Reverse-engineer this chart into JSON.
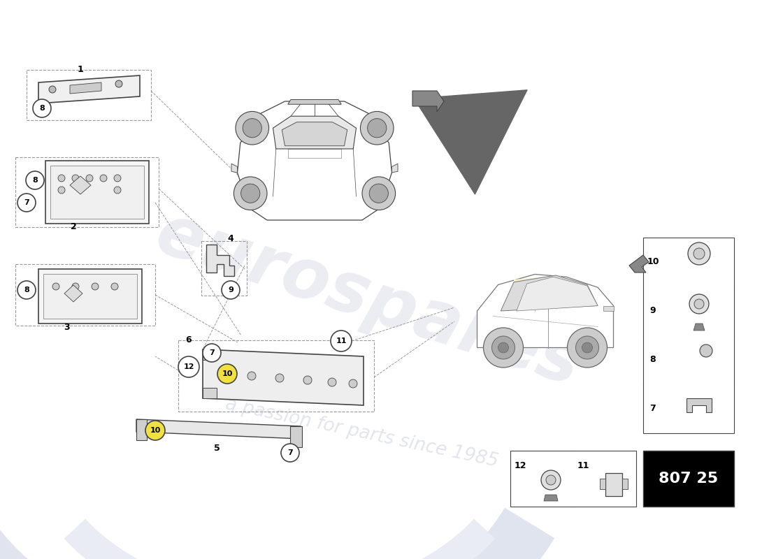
{
  "page_code": "807 25",
  "background_color": "#ffffff",
  "watermark_text1": "eurospares",
  "watermark_text2": "a passion for parts since 1985",
  "arc_color": "#e8eaf0",
  "line_color": "#444444",
  "dashed_color": "#999999",
  "circle_fill": "#ffffff",
  "highlight_fill": "#f0e040",
  "legend_border": "#333333"
}
